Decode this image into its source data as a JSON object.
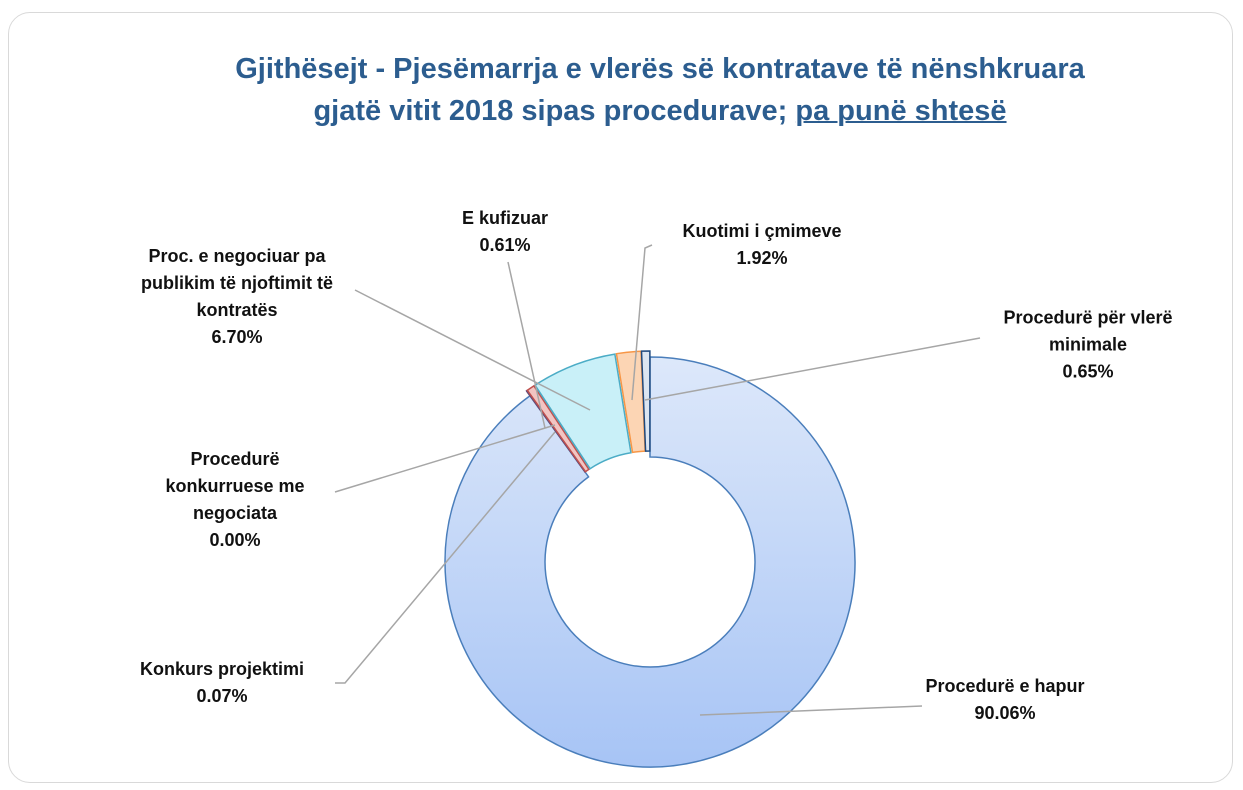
{
  "chart_data": {
    "type": "donut",
    "title": "Gjithësejt - Pjesëmarrja e vlerës së kontratave të nënshkruara gjatë vitit  2018 sipas procedurave;",
    "title_underlined": "pa punë shtesë",
    "categories": [
      "Procedurë e hapur",
      "Procedurë konkurruese me negociata",
      "Konkurs projektimi",
      "E kufizuar",
      "Proc. e negociuar pa publikim të njoftimit të kontratës",
      "Kuotimi i çmimeve",
      "Procedurë për vlerë minimale"
    ],
    "values": [
      90.06,
      0.0,
      0.07,
      0.61,
      6.7,
      1.92,
      0.65
    ],
    "value_labels": [
      "90.06%",
      "0.00%",
      "0.07%",
      "0.61%",
      "6.70%",
      "1.92%",
      "0.65%"
    ],
    "colors": [
      "#bcd3f7",
      "#d9d9d9",
      "#8064a2",
      "#f2c4c2",
      "#c9f0f8",
      "#fcd5b4",
      "#dbe5f1"
    ],
    "edge_colors": [
      "#4a7ebb",
      "#7f7f7f",
      "#604a7b",
      "#c0504d",
      "#4bacc6",
      "#f79646",
      "#1f497d"
    ]
  }
}
